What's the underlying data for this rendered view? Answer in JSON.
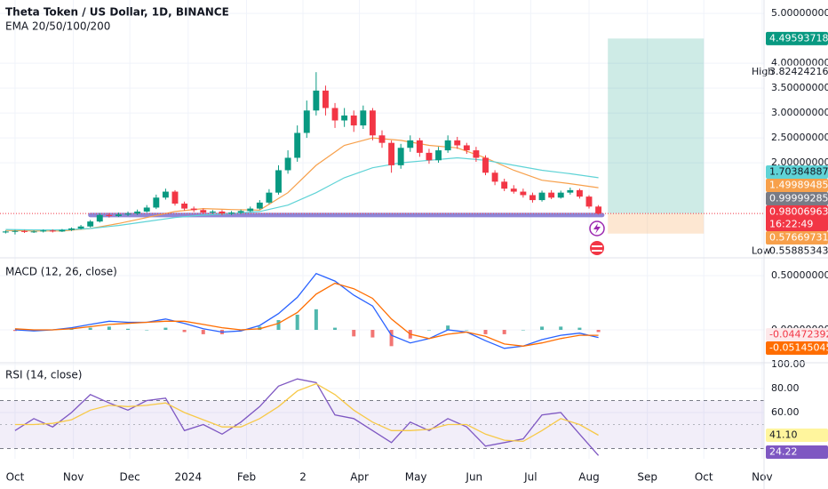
{
  "chart_data": [
    {
      "type": "candlestick",
      "title": "Theta Token / US Dollar, 1D, BINANCE",
      "subtitle": "EMA 20/50/100/200",
      "x": [
        -5,
        0,
        5,
        10,
        15,
        20,
        25,
        30,
        35,
        40,
        45,
        50,
        55,
        60,
        65,
        70,
        75,
        80,
        85,
        90,
        95,
        100,
        105,
        110,
        115,
        120,
        125,
        130,
        135,
        140,
        145,
        150,
        155,
        160,
        165,
        170,
        175,
        180,
        185,
        190,
        195,
        200,
        205,
        210,
        215,
        220,
        225,
        230,
        235,
        240,
        245,
        250,
        255,
        260,
        265,
        270,
        275,
        280,
        285,
        290,
        295,
        300,
        305,
        310
      ],
      "open": [
        0.6,
        0.62,
        0.63,
        0.61,
        0.62,
        0.64,
        0.62,
        0.65,
        0.68,
        0.72,
        0.82,
        0.95,
        0.93,
        0.96,
        0.98,
        1.02,
        1.1,
        1.3,
        1.42,
        1.18,
        1.08,
        1.05,
        1.0,
        1.02,
        0.98,
        1.0,
        1.03,
        1.08,
        1.2,
        1.4,
        1.85,
        2.1,
        2.6,
        3.05,
        3.45,
        3.1,
        2.85,
        2.95,
        2.75,
        3.05,
        2.55,
        2.4,
        1.95,
        2.3,
        2.45,
        2.2,
        2.05,
        2.25,
        2.45,
        2.35,
        2.25,
        2.1,
        1.8,
        1.62,
        1.48,
        1.42,
        1.35,
        1.25,
        1.4,
        1.3,
        1.4,
        1.45,
        1.32,
        1.12
      ],
      "high": [
        0.64,
        0.65,
        0.65,
        0.64,
        0.66,
        0.66,
        0.67,
        0.7,
        0.75,
        0.85,
        0.99,
        0.99,
        1.0,
        1.02,
        1.06,
        1.15,
        1.36,
        1.48,
        1.45,
        1.22,
        1.12,
        1.08,
        1.05,
        1.05,
        1.03,
        1.06,
        1.12,
        1.25,
        1.47,
        1.95,
        2.25,
        2.75,
        3.25,
        3.82,
        3.55,
        3.2,
        3.1,
        3.05,
        3.15,
        3.1,
        2.65,
        2.45,
        2.38,
        2.55,
        2.5,
        2.28,
        2.32,
        2.55,
        2.52,
        2.4,
        2.32,
        2.15,
        1.85,
        1.68,
        1.55,
        1.48,
        1.4,
        1.44,
        1.45,
        1.44,
        1.5,
        1.48,
        1.35,
        1.15
      ],
      "low": [
        0.58,
        0.56,
        0.59,
        0.59,
        0.6,
        0.6,
        0.61,
        0.63,
        0.66,
        0.7,
        0.8,
        0.9,
        0.91,
        0.93,
        0.95,
        1.0,
        1.07,
        1.26,
        1.14,
        1.04,
        1.01,
        0.97,
        0.97,
        0.95,
        0.95,
        0.97,
        1.01,
        1.06,
        1.17,
        1.36,
        1.78,
        2.02,
        2.5,
        2.95,
        2.95,
        2.7,
        2.72,
        2.62,
        2.68,
        2.45,
        2.3,
        1.8,
        1.88,
        2.22,
        2.12,
        1.98,
        2.0,
        2.2,
        2.28,
        2.18,
        2.02,
        1.75,
        1.55,
        1.43,
        1.38,
        1.3,
        1.2,
        1.22,
        1.27,
        1.28,
        1.36,
        1.28,
        1.08,
        0.96
      ],
      "close": [
        0.62,
        0.63,
        0.61,
        0.62,
        0.64,
        0.62,
        0.65,
        0.68,
        0.72,
        0.82,
        0.95,
        0.93,
        0.96,
        0.98,
        1.02,
        1.1,
        1.3,
        1.42,
        1.18,
        1.08,
        1.05,
        1.0,
        1.02,
        0.98,
        1.0,
        1.03,
        1.08,
        1.2,
        1.4,
        1.85,
        2.1,
        2.6,
        3.05,
        3.45,
        3.1,
        2.85,
        2.95,
        2.75,
        3.05,
        2.55,
        2.4,
        1.95,
        2.3,
        2.45,
        2.2,
        2.05,
        2.25,
        2.45,
        2.35,
        2.25,
        2.1,
        1.8,
        1.62,
        1.48,
        1.42,
        1.35,
        1.25,
        1.4,
        1.3,
        1.4,
        1.45,
        1.32,
        1.12,
        0.98
      ],
      "up_color": "#089981",
      "down_color": "#f23645",
      "ema": [
        {
          "color": "#f7a04b",
          "x": [
            -5,
            10,
            25,
            40,
            55,
            70,
            85,
            100,
            115,
            130,
            145,
            160,
            175,
            190,
            205,
            220,
            235,
            250,
            265,
            280,
            295,
            310
          ],
          "values": [
            0.64,
            0.63,
            0.63,
            0.68,
            0.78,
            0.9,
            1.02,
            1.08,
            1.06,
            1.05,
            1.4,
            1.95,
            2.35,
            2.5,
            2.45,
            2.35,
            2.3,
            2.1,
            1.85,
            1.65,
            1.58,
            1.5
          ]
        },
        {
          "color": "#5fd3d6",
          "x": [
            -5,
            10,
            25,
            40,
            55,
            70,
            85,
            100,
            115,
            130,
            145,
            160,
            175,
            190,
            205,
            220,
            235,
            250,
            265,
            280,
            295,
            310
          ],
          "values": [
            0.66,
            0.65,
            0.65,
            0.68,
            0.74,
            0.82,
            0.9,
            0.95,
            0.98,
            1.02,
            1.15,
            1.4,
            1.7,
            1.9,
            2.0,
            2.05,
            2.1,
            2.05,
            1.95,
            1.85,
            1.78,
            1.7
          ]
        }
      ],
      "support": {
        "value": 0.95,
        "x": [
          40,
          312
        ],
        "color": "#8f86d6"
      },
      "position": {
        "x": [
          315,
          366
        ],
        "target": 4.49593718,
        "entry": 0.98006963,
        "stop": 0.57669731
      },
      "xlim": [
        -8,
        398
      ],
      "ylim": [
        0.09,
        5.27
      ],
      "yticks": [
        {
          "value": 5,
          "label": "5.00000000"
        },
        {
          "value": 4,
          "label": "4.00000000"
        },
        {
          "value": 3.5,
          "label": "3.50000000"
        },
        {
          "value": 3,
          "label": "3.00000000"
        },
        {
          "value": 2.5,
          "label": "2.50000000"
        },
        {
          "value": 2,
          "label": "2.00000000"
        }
      ],
      "price_labels": [
        {
          "value": 4.49593718,
          "color": "#089981"
        },
        {
          "value": 3.82424216,
          "tag": "High",
          "color": "#ffffff",
          "text_color": "#131722"
        },
        {
          "value": 1.70384887,
          "color": "#5fd3d6",
          "text_color": "#131722"
        },
        {
          "value": 1.49989485,
          "color": "#f7a04b"
        },
        {
          "value": 0.99999285,
          "color": "#787b86"
        },
        {
          "value": 0.98006963,
          "color": "#f23645",
          "countdown": "16:22:49"
        },
        {
          "value": 0.57669731,
          "color": "#f7a04b"
        },
        {
          "value": 0.55885343,
          "tag": "Low",
          "color": "#ffffff",
          "text_color": "#131722"
        }
      ]
    },
    {
      "type": "macd",
      "title": "MACD (12, 26, close)",
      "x": [
        0,
        10,
        20,
        30,
        40,
        50,
        60,
        70,
        80,
        90,
        100,
        110,
        120,
        130,
        140,
        150,
        160,
        170,
        180,
        190,
        200,
        210,
        220,
        230,
        240,
        250,
        260,
        270,
        280,
        290,
        300,
        310
      ],
      "series": [
        {
          "color": "#2962ff",
          "values": [
            0.0,
            -0.01,
            0.0,
            0.02,
            0.05,
            0.08,
            0.07,
            0.07,
            0.1,
            0.06,
            0.01,
            -0.02,
            -0.01,
            0.04,
            0.15,
            0.3,
            0.52,
            0.45,
            0.32,
            0.22,
            -0.05,
            -0.12,
            -0.08,
            0.0,
            -0.02,
            -0.1,
            -0.17,
            -0.15,
            -0.09,
            -0.05,
            -0.03,
            -0.07
          ]
        },
        {
          "color": "#ff6d00",
          "values": [
            0.01,
            0.0,
            0.0,
            0.01,
            0.03,
            0.05,
            0.06,
            0.07,
            0.08,
            0.08,
            0.05,
            0.02,
            0.0,
            0.01,
            0.06,
            0.16,
            0.33,
            0.43,
            0.38,
            0.29,
            0.1,
            -0.04,
            -0.08,
            -0.04,
            -0.02,
            -0.06,
            -0.13,
            -0.15,
            -0.12,
            -0.08,
            -0.05,
            -0.05
          ]
        }
      ],
      "histogram": {
        "up_color": "#26a69a",
        "down_color": "#ef5350",
        "values": [
          -0.01,
          -0.01,
          0,
          0.01,
          0.02,
          0.03,
          0.01,
          0,
          0.02,
          -0.02,
          -0.04,
          -0.04,
          -0.01,
          0.03,
          0.09,
          0.14,
          0.19,
          0.02,
          -0.06,
          -0.07,
          -0.15,
          -0.08,
          0,
          0.04,
          0,
          -0.04,
          -0.04,
          0,
          0.03,
          0.03,
          0.02,
          -0.02
        ]
      },
      "xlim": [
        -8,
        398
      ],
      "ylim": [
        -0.303,
        0.664
      ],
      "yticks": [
        {
          "value": 0.5,
          "label": "0.50000000"
        },
        {
          "value": 0,
          "label": "0.00000000"
        }
      ],
      "price_labels": [
        {
          "value": -0.04472392,
          "color": "#fde8ea",
          "text_color": "#f23645"
        },
        {
          "value": -0.05145045,
          "color": "#ff6d00"
        }
      ]
    },
    {
      "type": "rsi",
      "title": "RSI (14, close)",
      "x": [
        0,
        10,
        20,
        30,
        40,
        50,
        60,
        70,
        80,
        90,
        100,
        110,
        120,
        130,
        140,
        150,
        160,
        170,
        180,
        190,
        200,
        210,
        220,
        230,
        240,
        250,
        260,
        270,
        280,
        290,
        300,
        310
      ],
      "series": [
        {
          "color": "#7e57c2",
          "values": [
            45,
            55,
            48,
            60,
            75,
            68,
            62,
            70,
            72,
            45,
            50,
            42,
            52,
            65,
            82,
            88,
            85,
            58,
            55,
            45,
            35,
            52,
            45,
            55,
            48,
            32,
            35,
            38,
            58,
            60,
            42,
            24.22
          ]
        },
        {
          "color": "#f7c948",
          "values": [
            50,
            50,
            51,
            54,
            62,
            66,
            65,
            66,
            68,
            60,
            54,
            48,
            48,
            55,
            65,
            78,
            84,
            75,
            62,
            52,
            45,
            45,
            46,
            50,
            50,
            42,
            37,
            36,
            45,
            55,
            50,
            41.1
          ]
        }
      ],
      "band": [
        30,
        70
      ],
      "midline": 50,
      "xlim": [
        -8,
        398
      ],
      "ylim": [
        21.5,
        101.5
      ],
      "yticks": [
        {
          "value": 100,
          "label": "100.00"
        },
        {
          "value": 80,
          "label": "80.00"
        },
        {
          "value": 60,
          "label": "60.00"
        }
      ],
      "xticks": [
        {
          "value": 0,
          "label": "Oct"
        },
        {
          "value": 31,
          "label": "Nov"
        },
        {
          "value": 61,
          "label": "Dec"
        },
        {
          "value": 92,
          "label": "2024"
        },
        {
          "value": 123,
          "label": "Feb"
        },
        {
          "value": 153,
          "label": "2"
        },
        {
          "value": 183,
          "label": "Apr"
        },
        {
          "value": 213,
          "label": "May"
        },
        {
          "value": 244,
          "label": "Jun"
        },
        {
          "value": 274,
          "label": "Jul"
        },
        {
          "value": 305,
          "label": "Aug"
        },
        {
          "value": 336,
          "label": "Sep"
        },
        {
          "value": 366,
          "label": "Oct"
        },
        {
          "value": 397,
          "label": "Nov"
        }
      ],
      "price_labels": [
        {
          "value": 41.1,
          "label": "41.10",
          "color": "#fff59d",
          "text_color": "#131722"
        },
        {
          "value": 24.22,
          "label": "24.22",
          "color": "#7e57c2"
        }
      ]
    }
  ]
}
